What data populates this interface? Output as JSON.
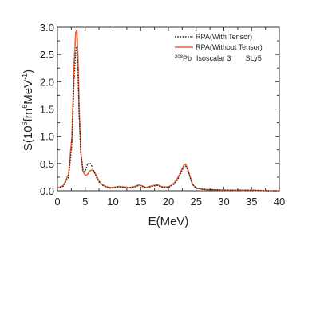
{
  "chart_data": {
    "type": "line",
    "title": "",
    "xlabel": "E(MeV)",
    "ylabel_parts": {
      "base": "S(10",
      "exp1": "6",
      "mid": "fm",
      "exp2": "6",
      "unit": "MeV",
      "exp3": "-1",
      "close": ")"
    },
    "xlim": [
      0,
      40
    ],
    "ylim": [
      0,
      3.0
    ],
    "xticks": [
      0,
      5,
      10,
      15,
      20,
      25,
      30,
      35,
      40
    ],
    "yticks": [
      0.0,
      0.5,
      1.0,
      1.5,
      2.0,
      2.5,
      3.0
    ],
    "ytick_labels": [
      "0.0",
      "0.5",
      "1.0",
      "1.5",
      "2.0",
      "2.5",
      "3.0"
    ],
    "grid": false,
    "legend_position": "top-right",
    "series": [
      {
        "name": "RPA(With Tensor)",
        "color": "#222222",
        "style": "dotted",
        "x": [
          0,
          1,
          2,
          2.6,
          3.0,
          3.3,
          3.5,
          3.7,
          3.9,
          4.2,
          4.6,
          5.0,
          5.4,
          5.8,
          6.2,
          6.6,
          7.0,
          7.5,
          8.0,
          8.5,
          9.0,
          9.5,
          10,
          11,
          12,
          13,
          14,
          14.7,
          15.5,
          16,
          17,
          18,
          19,
          20,
          20.5,
          21,
          21.5,
          22,
          22.5,
          22.8,
          23.1,
          23.4,
          23.8,
          24.3,
          25,
          26,
          27,
          28,
          30,
          32,
          35,
          38,
          40
        ],
        "y": [
          0.05,
          0.08,
          0.25,
          0.85,
          2.0,
          2.55,
          2.65,
          2.2,
          1.4,
          0.7,
          0.38,
          0.35,
          0.48,
          0.52,
          0.45,
          0.35,
          0.25,
          0.16,
          0.11,
          0.08,
          0.06,
          0.05,
          0.05,
          0.07,
          0.06,
          0.05,
          0.07,
          0.1,
          0.07,
          0.05,
          0.08,
          0.1,
          0.06,
          0.06,
          0.09,
          0.12,
          0.18,
          0.27,
          0.38,
          0.44,
          0.46,
          0.4,
          0.28,
          0.12,
          0.05,
          0.03,
          0.02,
          0.02,
          0.01,
          0.01,
          0.01,
          0.0,
          0.0
        ]
      },
      {
        "name": "RPA(Without Tensor)",
        "color": "#e8643c",
        "style": "solid",
        "x": [
          0,
          1,
          2,
          2.6,
          3.0,
          3.3,
          3.5,
          3.7,
          3.9,
          4.2,
          4.6,
          5.0,
          5.4,
          5.8,
          6.2,
          6.6,
          7.0,
          7.5,
          8.0,
          8.5,
          9.0,
          9.5,
          10,
          11,
          12,
          13,
          14,
          14.7,
          15.5,
          16,
          17,
          18,
          19,
          20,
          20.5,
          21,
          21.5,
          22,
          22.5,
          22.8,
          23.1,
          23.4,
          23.8,
          24.3,
          25,
          26,
          27,
          28,
          30,
          32,
          35,
          38,
          40
        ],
        "y": [
          0.05,
          0.09,
          0.3,
          1.0,
          2.3,
          2.9,
          2.95,
          2.45,
          1.55,
          0.72,
          0.35,
          0.28,
          0.3,
          0.36,
          0.38,
          0.35,
          0.28,
          0.18,
          0.12,
          0.09,
          0.07,
          0.06,
          0.06,
          0.08,
          0.07,
          0.06,
          0.08,
          0.11,
          0.08,
          0.06,
          0.09,
          0.11,
          0.07,
          0.07,
          0.1,
          0.14,
          0.2,
          0.3,
          0.41,
          0.47,
          0.49,
          0.42,
          0.3,
          0.13,
          0.05,
          0.03,
          0.02,
          0.02,
          0.01,
          0.01,
          0.01,
          0.0,
          0.0
        ]
      }
    ],
    "annotation": {
      "mass_number": "208",
      "nucleus": "Pb",
      "label": "Isoscalar 3",
      "label_sup": "-",
      "force": "SLy5"
    }
  }
}
